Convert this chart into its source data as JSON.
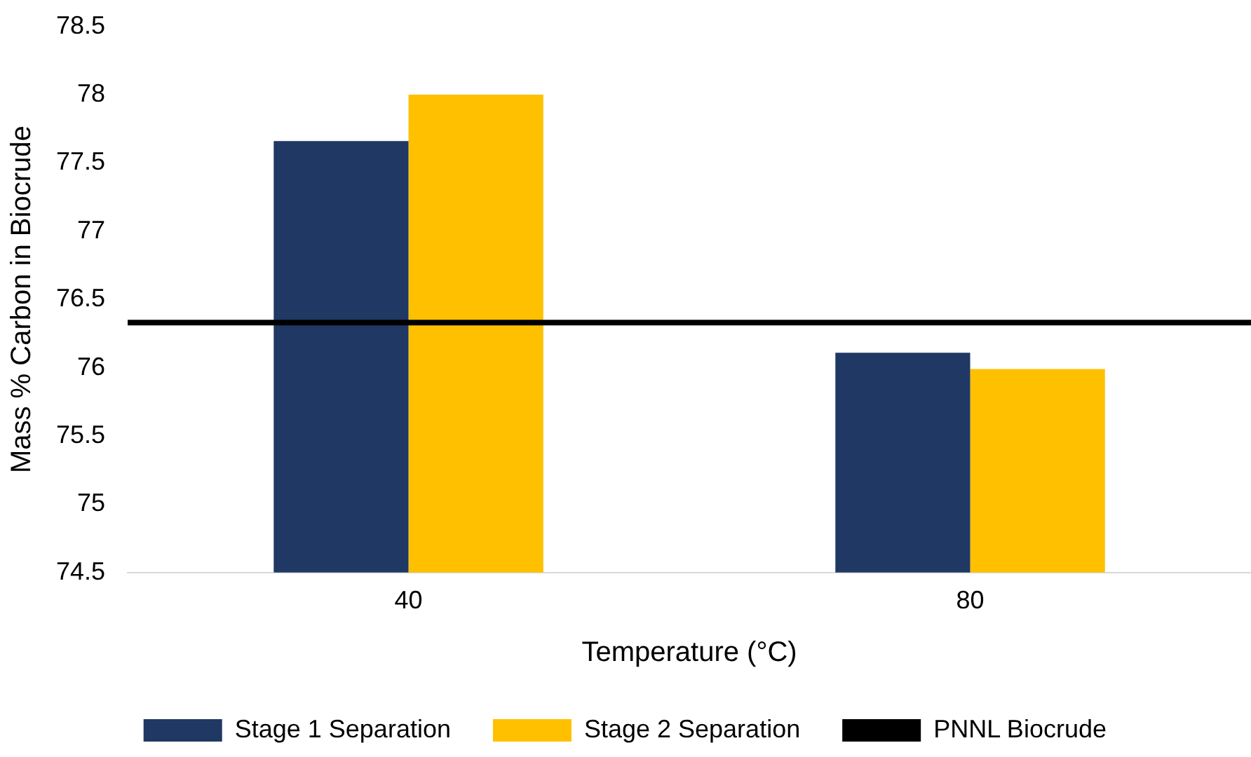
{
  "chart_data": {
    "type": "bar",
    "xlabel": "Temperature (°C)",
    "ylabel": "Mass % Carbon in Biocrude",
    "categories": [
      "40",
      "80"
    ],
    "series": [
      {
        "name": "Stage 1 Separation",
        "color": "#203864",
        "values": [
          77.66,
          76.11
        ]
      },
      {
        "name": "Stage 2 Separation",
        "color": "#ffc000",
        "values": [
          78.0,
          75.99
        ]
      }
    ],
    "ylim": [
      74.5,
      78.5
    ],
    "yticks": [
      74.5,
      75,
      75.5,
      76,
      76.5,
      77,
      77.5,
      78,
      78.5
    ],
    "grid": false,
    "legend": "bottom",
    "ref_lines": [
      {
        "axis": "y",
        "value": 76.33,
        "label": "PNNL Biocrude",
        "color": "#000000"
      }
    ]
  }
}
